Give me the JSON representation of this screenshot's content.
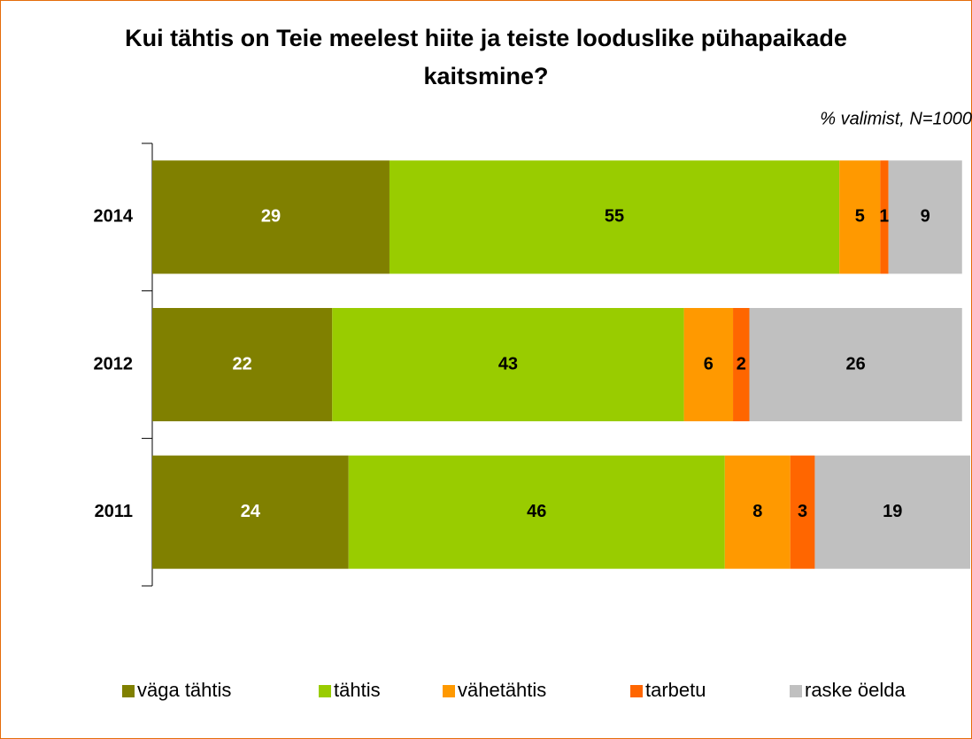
{
  "chart_data": {
    "type": "stacked_bar_horizontal",
    "title": "Kui tähtis on Teie meelest hiite ja teiste looduslike pühapaikade kaitsmine?",
    "subtitle": "% valimist, N=1000",
    "categories": [
      "2014",
      "2012",
      "2011"
    ],
    "xlim": [
      0,
      100
    ],
    "series": [
      {
        "name": "väga tähtis",
        "color": "#808000",
        "values": [
          29,
          22,
          24
        ]
      },
      {
        "name": "tähtis",
        "color": "#99cc00",
        "values": [
          55,
          43,
          46
        ]
      },
      {
        "name": "vähetähtis",
        "color": "#ff9900",
        "values": [
          5,
          6,
          8
        ]
      },
      {
        "name": "tarbetu",
        "color": "#ff6600",
        "values": [
          1,
          2,
          3
        ]
      },
      {
        "name": "raske öelda",
        "color": "#c0c0c0",
        "values": [
          9,
          26,
          19
        ]
      }
    ],
    "legend": "bottom"
  }
}
